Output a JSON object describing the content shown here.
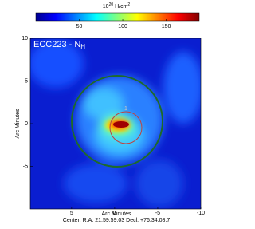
{
  "chart_data": {
    "type": "heatmap",
    "title": "ECC223 - N",
    "title_subscript": "H",
    "colorbar_label": {
      "base": "10",
      "exponent": "20",
      "unit": " H/cm",
      "unit_exponent": "2"
    },
    "colormap": "jet",
    "clim": [
      0,
      188
    ],
    "cticks": [
      50,
      100,
      150
    ],
    "xlabel": "Arc Minutes",
    "ylabel": "Arc Minutes",
    "xlim": [
      9.8,
      -10
    ],
    "xticks": [
      5,
      0,
      -5,
      -10
    ],
    "ylim": [
      -10,
      10
    ],
    "yticks": [
      -5,
      0,
      5,
      10
    ],
    "regions": [
      {
        "label": "1"
      }
    ],
    "footer": "Center:  R.A. 21:59:59.03   Decl. +76:34:08.7"
  }
}
